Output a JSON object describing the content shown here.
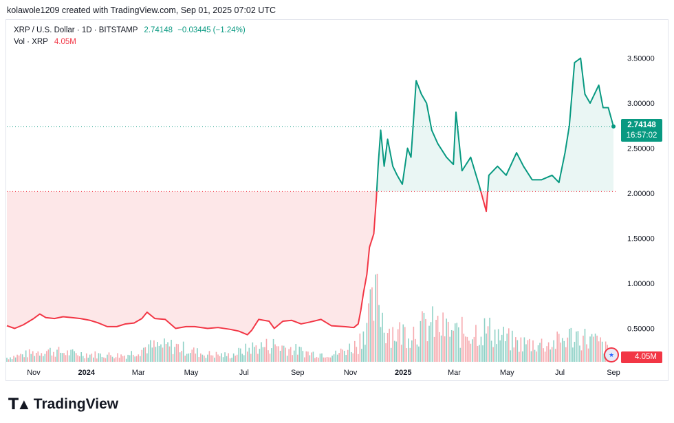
{
  "credit": "kolawole1209 created with TradingView.com, Sep 01, 2025 07:02 UTC",
  "legend": {
    "symbol": "XRP / U.S. Dollar · 1D · BITSTAMP",
    "price": "2.74148",
    "change": "−0.03445 (−1.24%)",
    "vol_label": "Vol · XRP",
    "vol_value": "4.05M"
  },
  "last_price_badge": {
    "price": "2.74148",
    "countdown": "16:57:02"
  },
  "volume_badge": "4.05M",
  "brand": "TradingView",
  "colors": {
    "up": "#089981",
    "down": "#f23645",
    "up_fill": "#e6f5f2",
    "down_fill": "#fde3e4"
  },
  "chart_data": {
    "type": "line",
    "title": "",
    "xlabel": "",
    "ylabel": "",
    "ylim": [
      0.2,
      3.7
    ],
    "y_ticks": [
      "3.50000",
      "3.00000",
      "2.50000",
      "2.00000",
      "1.50000",
      "1.00000",
      "0.50000"
    ],
    "x_ticks": [
      {
        "label": "Nov",
        "date": "2023-11-01",
        "bold": false
      },
      {
        "label": "2024",
        "date": "2024-01-01",
        "bold": true
      },
      {
        "label": "Mar",
        "date": "2024-03-01",
        "bold": false
      },
      {
        "label": "May",
        "date": "2024-05-01",
        "bold": false
      },
      {
        "label": "Jul",
        "date": "2024-07-01",
        "bold": false
      },
      {
        "label": "Sep",
        "date": "2024-09-01",
        "bold": false
      },
      {
        "label": "Nov",
        "date": "2024-11-01",
        "bold": false
      },
      {
        "label": "2025",
        "date": "2025-01-01",
        "bold": true
      },
      {
        "label": "Mar",
        "date": "2025-03-01",
        "bold": false
      },
      {
        "label": "May",
        "date": "2025-05-01",
        "bold": false
      },
      {
        "label": "Jul",
        "date": "2025-07-01",
        "bold": false
      },
      {
        "label": "Sep",
        "date": "2025-09-01",
        "bold": false
      }
    ],
    "baseline": 2.02,
    "last_price": 2.74148,
    "series": [
      {
        "x": [
          "2023-10-01",
          "2023-10-10",
          "2023-10-20",
          "2023-11-01",
          "2023-11-08",
          "2023-11-15",
          "2023-11-25",
          "2023-12-05",
          "2023-12-15",
          "2023-12-25",
          "2024-01-05",
          "2024-01-15",
          "2024-01-25",
          "2024-02-05",
          "2024-02-15",
          "2024-02-25",
          "2024-03-05",
          "2024-03-11",
          "2024-03-20",
          "2024-04-01",
          "2024-04-13",
          "2024-04-25",
          "2024-05-05",
          "2024-05-20",
          "2024-06-01",
          "2024-06-15",
          "2024-06-25",
          "2024-07-05",
          "2024-07-10",
          "2024-07-18",
          "2024-07-30",
          "2024-08-05",
          "2024-08-15",
          "2024-08-25",
          "2024-09-05",
          "2024-09-15",
          "2024-09-28",
          "2024-10-10",
          "2024-10-25",
          "2024-11-05",
          "2024-11-10",
          "2024-11-13",
          "2024-11-16",
          "2024-11-20",
          "2024-11-23",
          "2024-11-28",
          "2024-12-01",
          "2024-12-03",
          "2024-12-06",
          "2024-12-10",
          "2024-12-14",
          "2024-12-20",
          "2024-12-25",
          "2024-12-31",
          "2025-01-06",
          "2025-01-10",
          "2025-01-16",
          "2025-01-22",
          "2025-01-28",
          "2025-02-03",
          "2025-02-10",
          "2025-02-20",
          "2025-02-28",
          "2025-03-03",
          "2025-03-10",
          "2025-03-20",
          "2025-03-30",
          "2025-04-07",
          "2025-04-10",
          "2025-04-20",
          "2025-04-30",
          "2025-05-12",
          "2025-05-20",
          "2025-05-30",
          "2025-06-10",
          "2025-06-22",
          "2025-06-30",
          "2025-07-07",
          "2025-07-12",
          "2025-07-18",
          "2025-07-25",
          "2025-07-30",
          "2025-08-05",
          "2025-08-10",
          "2025-08-15",
          "2025-08-20",
          "2025-08-26",
          "2025-09-01"
        ],
        "y": [
          0.53,
          0.5,
          0.54,
          0.61,
          0.66,
          0.62,
          0.61,
          0.63,
          0.62,
          0.61,
          0.59,
          0.56,
          0.52,
          0.52,
          0.55,
          0.56,
          0.61,
          0.68,
          0.61,
          0.6,
          0.5,
          0.52,
          0.52,
          0.5,
          0.51,
          0.49,
          0.47,
          0.43,
          0.48,
          0.6,
          0.58,
          0.5,
          0.58,
          0.59,
          0.55,
          0.57,
          0.6,
          0.53,
          0.52,
          0.51,
          0.55,
          0.7,
          0.89,
          1.1,
          1.4,
          1.55,
          1.95,
          2.3,
          2.7,
          2.3,
          2.6,
          2.3,
          2.2,
          2.1,
          2.5,
          2.4,
          3.25,
          3.1,
          3.0,
          2.7,
          2.55,
          2.4,
          2.32,
          2.9,
          2.25,
          2.4,
          2.08,
          1.8,
          2.2,
          2.3,
          2.2,
          2.45,
          2.3,
          2.15,
          2.15,
          2.2,
          2.12,
          2.45,
          2.75,
          3.45,
          3.5,
          3.1,
          3.0,
          3.1,
          3.2,
          2.95,
          2.95,
          2.74148
        ]
      },
      {
        "name": "Vol · XRP",
        "type": "bar",
        "x": [
          "2023-10-15",
          "2023-11-15",
          "2023-12-15",
          "2024-01-15",
          "2024-02-15",
          "2024-03-11",
          "2024-04-13",
          "2024-05-15",
          "2024-06-15",
          "2024-07-10",
          "2024-08-05",
          "2024-09-15",
          "2024-10-15",
          "2024-11-10",
          "2024-11-20",
          "2024-11-28",
          "2024-12-03",
          "2024-12-10",
          "2024-12-25",
          "2025-01-16",
          "2025-02-03",
          "2025-03-03",
          "2025-04-07",
          "2025-05-12",
          "2025-06-22",
          "2025-07-18",
          "2025-08-15",
          "2025-09-01"
        ],
        "values": [
          90,
          160,
          120,
          100,
          90,
          210,
          220,
          110,
          90,
          200,
          240,
          120,
          110,
          250,
          600,
          750,
          1000,
          500,
          400,
          450,
          520,
          400,
          450,
          260,
          250,
          380,
          270,
          110
        ]
      }
    ]
  }
}
